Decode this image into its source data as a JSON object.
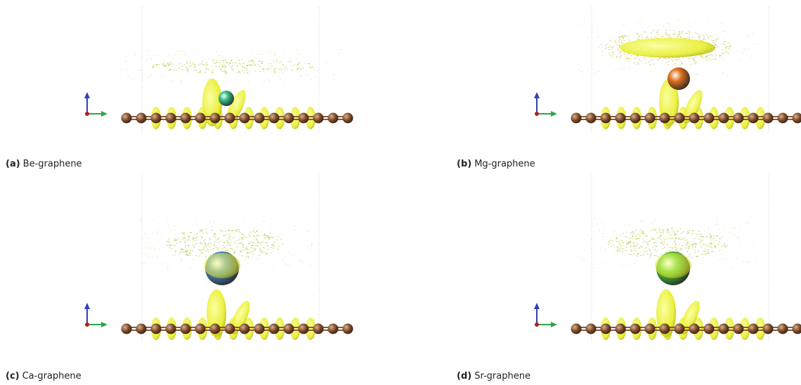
{
  "figure": {
    "panels": [
      {
        "label": "(a)",
        "caption": "Be-graphene",
        "adatom": "Be",
        "adatom_color": "#3cc088"
      },
      {
        "label": "(b)",
        "caption": "Mg-graphene",
        "adatom": "Mg",
        "adatom_color": "#e0731f"
      },
      {
        "label": "(c)",
        "caption": "Ca-graphene",
        "adatom": "Ca",
        "adatom_color": "#4f8fc8"
      },
      {
        "label": "(d)",
        "caption": "Sr-graphene",
        "adatom": "Sr",
        "adatom_color": "#4fcc3a"
      }
    ],
    "colors": {
      "carbon": "#7a4a2a",
      "isosurface": "#e8ee2e",
      "density_haze": "#b8c23a",
      "axis_x": "#2aa84a",
      "axis_y": "#3040b8",
      "axis_origin": "#b02020",
      "cell_line": "#cfcfcf"
    }
  }
}
